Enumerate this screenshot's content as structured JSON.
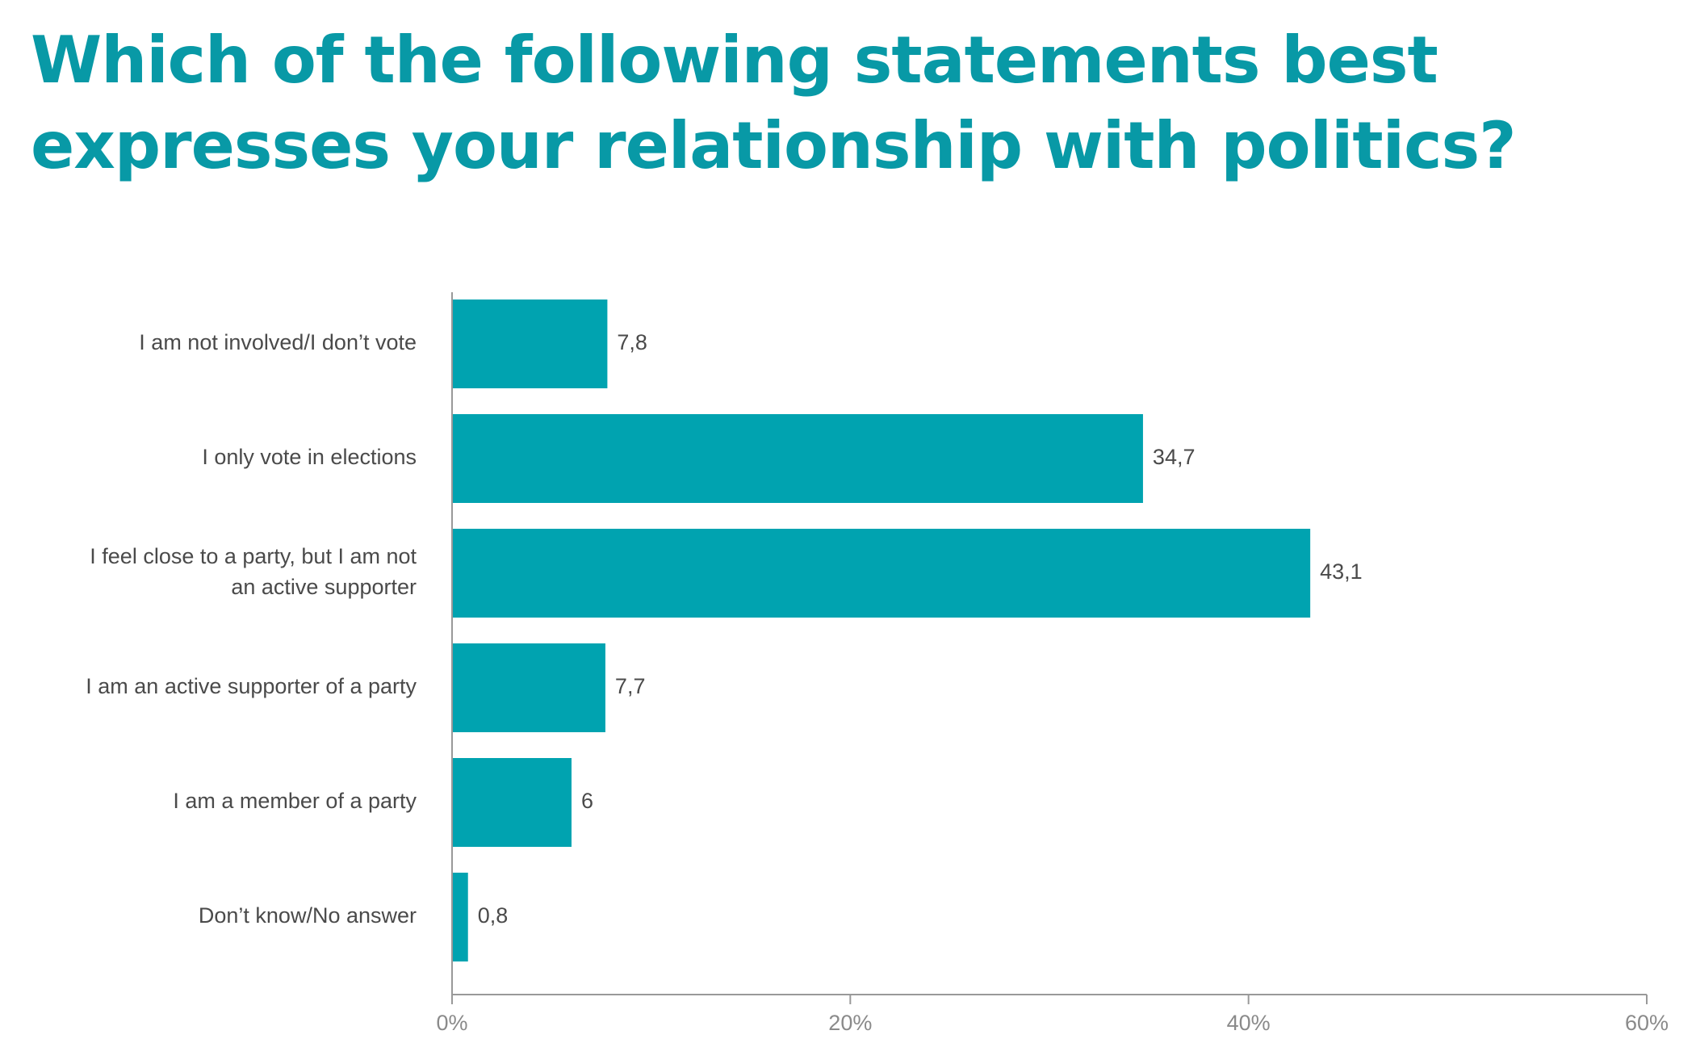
{
  "chart_data": {
    "type": "bar",
    "orientation": "horizontal",
    "title": "Which of the following statements best expresses your relationship with politics?",
    "categories": [
      [
        "I am not involved/I don’t vote"
      ],
      [
        "I only vote in elections"
      ],
      [
        "I feel close to a party, but I am not",
        "an active supporter"
      ],
      [
        "I am an active supporter of a party"
      ],
      [
        "I am a member of a party"
      ],
      [
        "Don’t know/No answer"
      ]
    ],
    "values": [
      7.8,
      34.7,
      43.1,
      7.7,
      6,
      0.8
    ],
    "value_labels": [
      "7,8",
      "34,7",
      "43,1",
      "7,7",
      "6",
      "0,8"
    ],
    "xlim": [
      0,
      60
    ],
    "x_ticks": [
      0,
      20,
      40,
      60
    ],
    "x_tick_labels": [
      "0%",
      "20%",
      "40%",
      "60%"
    ],
    "grid": false,
    "legend": "none",
    "colors": {
      "bar": "#00a3b0",
      "title": "#0899a6",
      "axis": "#999999",
      "text": "#4a4a4a",
      "tick_text": "#8a8a8a"
    }
  }
}
